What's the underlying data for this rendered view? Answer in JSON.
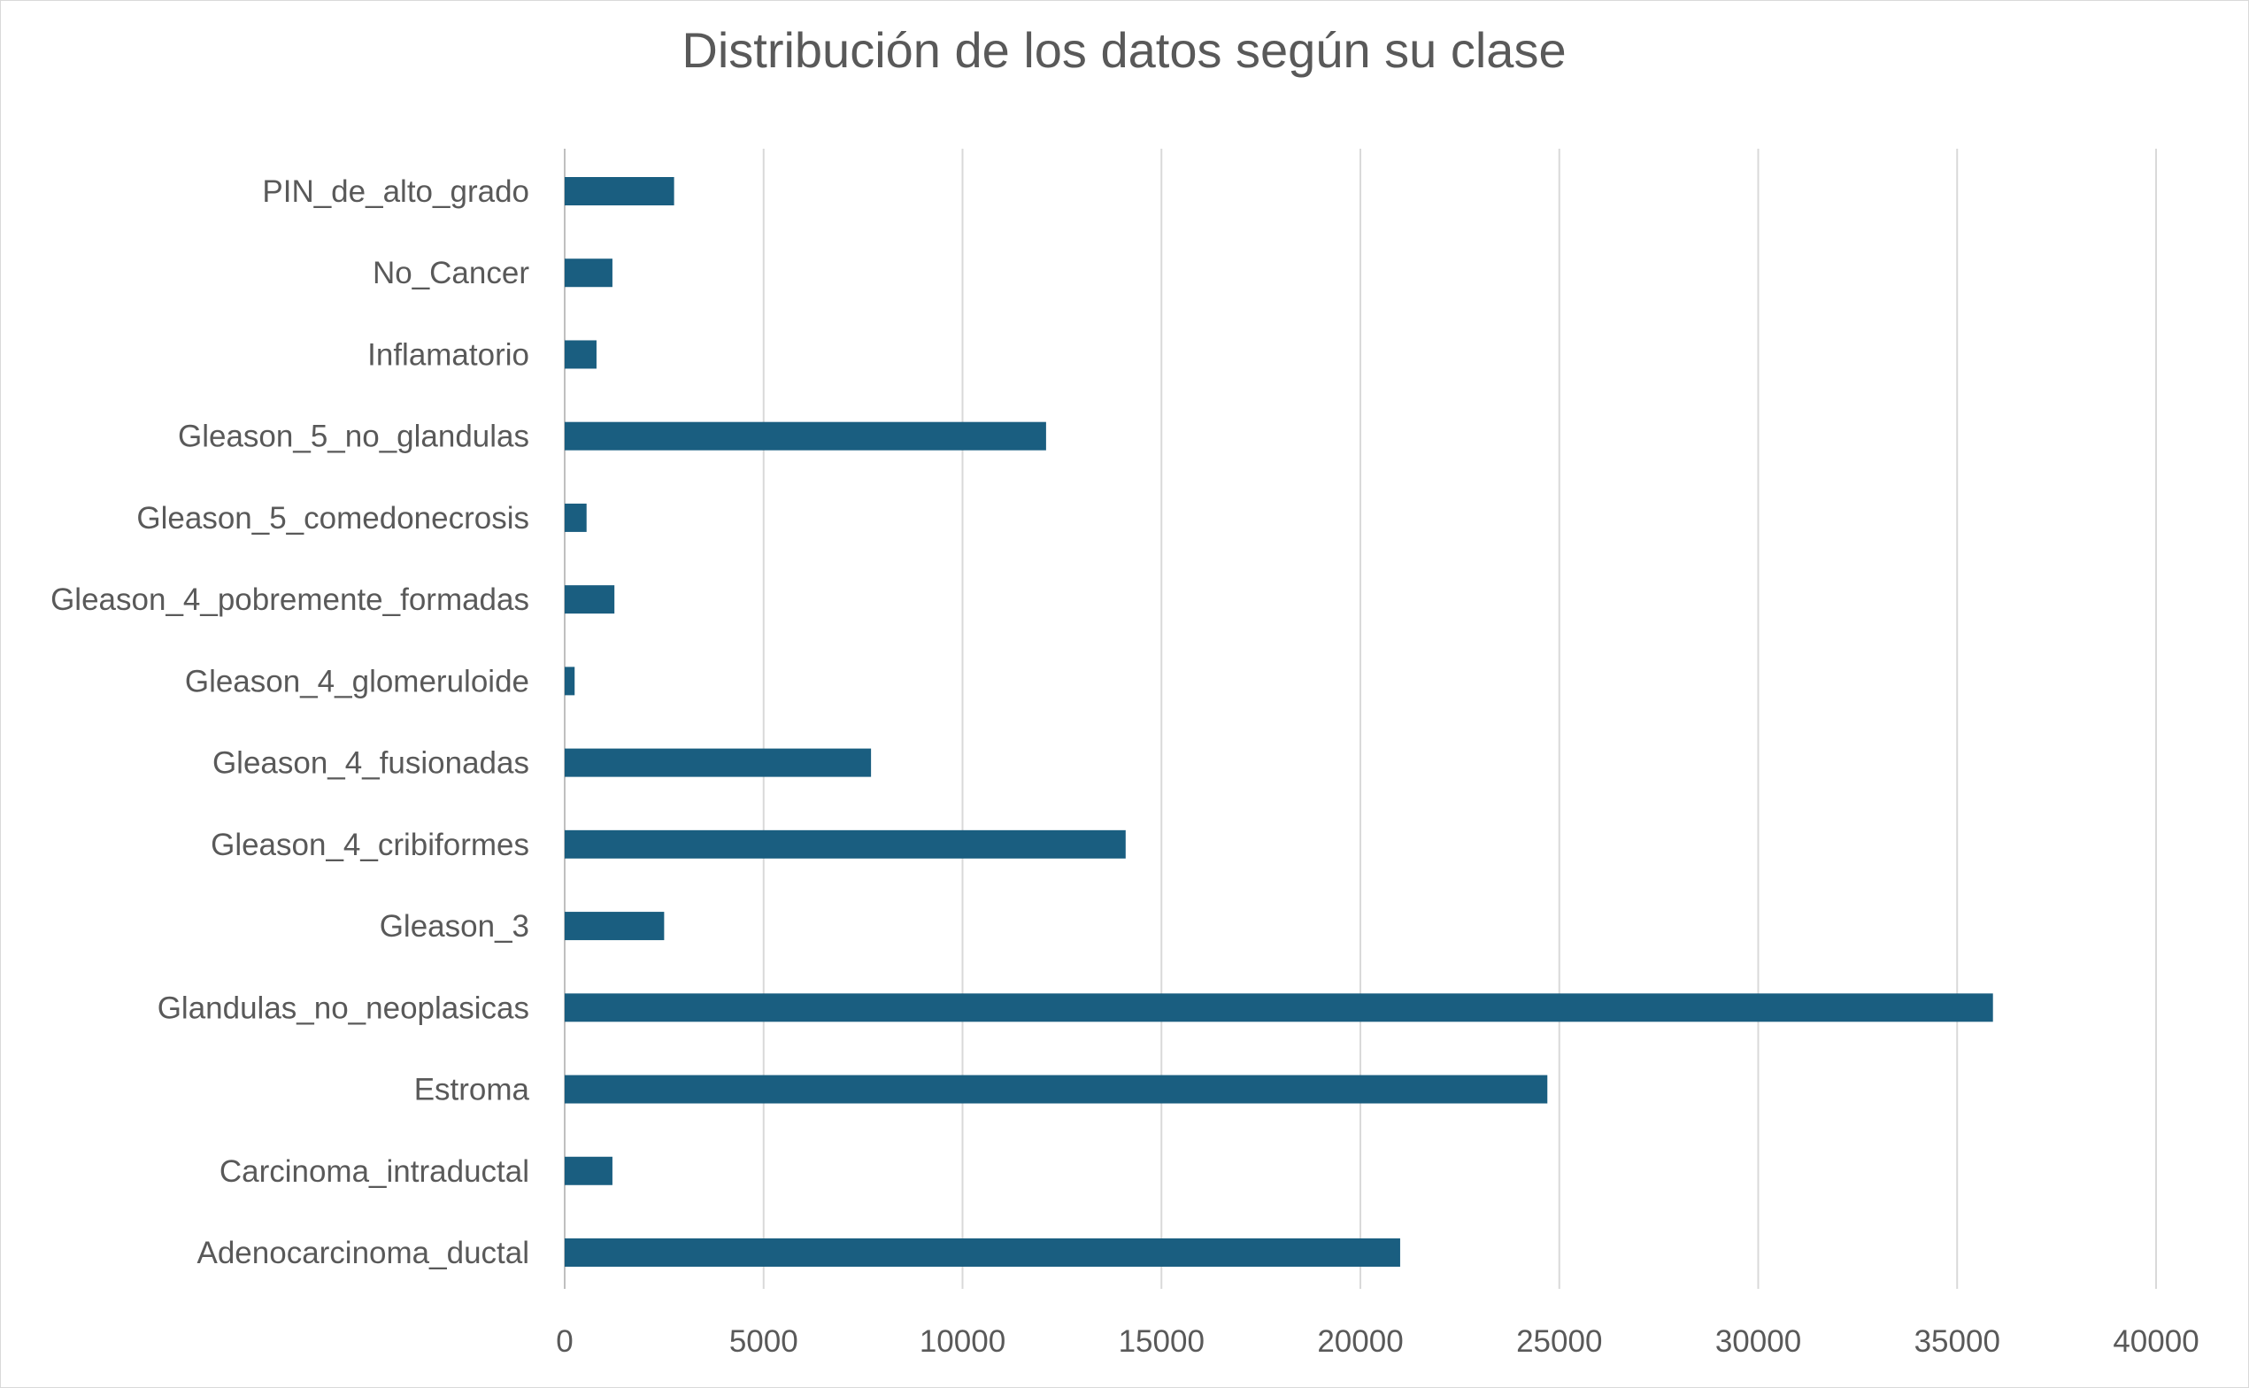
{
  "chart_data": {
    "type": "bar",
    "orientation": "horizontal",
    "title": "Distribución de los datos según su clase",
    "categories": [
      "PIN_de_alto_grado",
      "No_Cancer",
      "Inflamatorio",
      "Gleason_5_no_glandulas",
      "Gleason_5_comedonecrosis",
      "Gleason_4_pobremente_formadas",
      "Gleason_4_glomeruloide",
      "Gleason_4_fusionadas",
      "Gleason_4_cribiformes",
      "Gleason_3",
      "Glandulas_no_neoplasicas",
      "Estroma",
      "Carcinoma_intraductal",
      "Adenocarcinoma_ductal"
    ],
    "values": [
      2750,
      1200,
      800,
      12100,
      550,
      1250,
      250,
      7700,
      14100,
      2500,
      35900,
      24700,
      1200,
      21000
    ],
    "xlim": [
      0,
      40000
    ],
    "xticks": [
      "0",
      "5000",
      "10000",
      "15000",
      "20000",
      "25000",
      "30000",
      "35000",
      "40000"
    ],
    "grid": "vertical",
    "legend": "none",
    "bar_color": "#1a5e80"
  }
}
